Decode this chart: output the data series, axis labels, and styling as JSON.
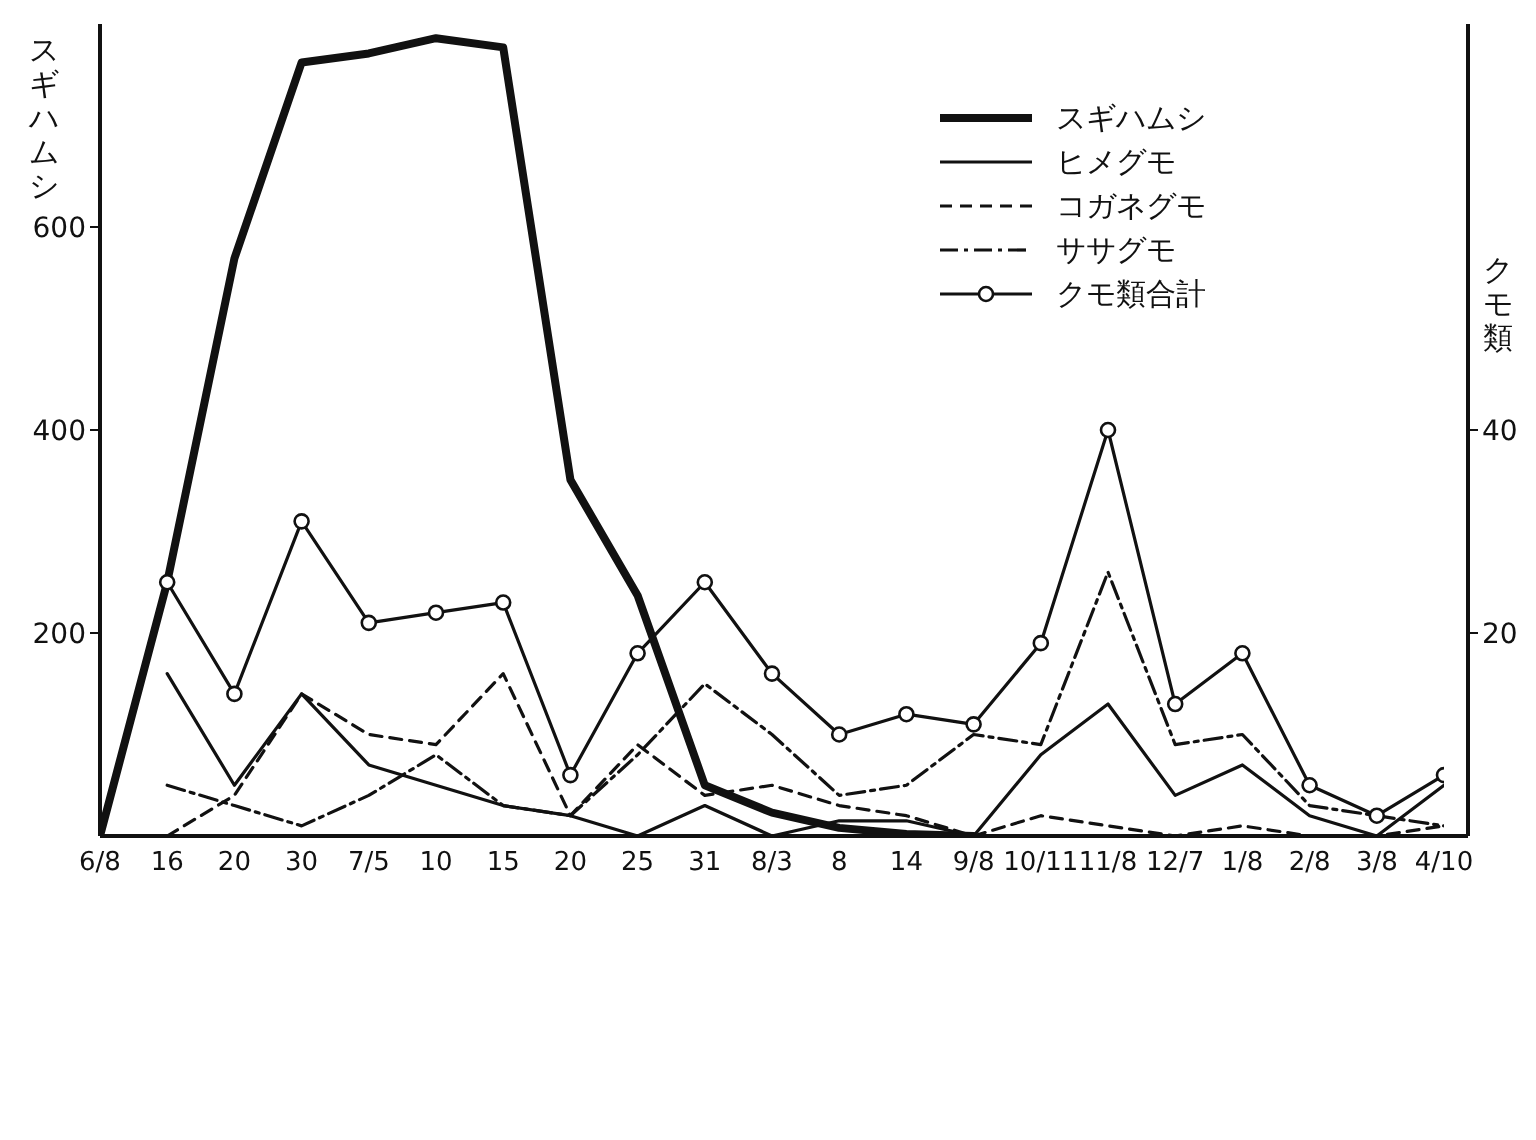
{
  "chart_data": {
    "type": "line",
    "ylabel": "スギハムシ",
    "y2label": "クモ類",
    "categories": [
      "6/8",
      "16",
      "20",
      "30",
      "7/5",
      "10",
      "15",
      "20",
      "25",
      "31",
      "8/3",
      "8",
      "14",
      "9/8",
      "10/11",
      "11/8",
      "12/7",
      "1/8",
      "2/8",
      "3/8",
      "4/10"
    ],
    "series": [
      {
        "name": "スギハムシ",
        "color": "#111111",
        "line_style": "solid",
        "marker": "none",
        "values": [
          0,
          250,
          569,
          762,
          771,
          786,
          777,
          351,
          237,
          50,
          23,
          8,
          2,
          0,
          null,
          null,
          null,
          null,
          null,
          null,
          null
        ]
      },
      {
        "name": "ヒメグモ",
        "color": "#111111",
        "axis": "y2",
        "line_style": "solid",
        "marker": "none",
        "values": [
          null,
          16,
          5,
          14,
          7,
          5,
          3,
          2,
          0,
          3,
          0,
          1.5,
          1.5,
          0,
          8,
          13,
          4,
          7,
          2,
          0,
          5
        ]
      },
      {
        "name": "コガネグモ",
        "color": "#111111",
        "axis": "y2",
        "line_style": "dashed",
        "marker": "none",
        "values": [
          null,
          0,
          4,
          14,
          10,
          9,
          16,
          2,
          9,
          4,
          5,
          3,
          2,
          0,
          2,
          1,
          0,
          1,
          0,
          0,
          1
        ]
      },
      {
        "name": "ササグモ",
        "color": "#111111",
        "axis": "y2",
        "line_style": "dashdot",
        "marker": "none",
        "values": [
          null,
          5,
          3,
          1,
          4,
          8,
          3,
          2,
          8,
          15,
          10,
          4,
          5,
          10,
          9,
          26,
          9,
          10,
          3,
          2,
          1
        ]
      },
      {
        "name": "クモ類合計",
        "color": "#111111",
        "axis": "y2",
        "line_style": "solid",
        "marker": "circle",
        "values": [
          null,
          25,
          14,
          31,
          21,
          22,
          23,
          6,
          18,
          25,
          16,
          10,
          12,
          11,
          19,
          40,
          13,
          18,
          5,
          2,
          6
        ]
      }
    ],
    "ylim": [
      0,
      800
    ],
    "yticks": [
      200,
      400,
      600
    ],
    "y2lim": [
      0,
      80
    ],
    "y2ticks": [
      20,
      40
    ],
    "grid": false,
    "legend": "top right"
  }
}
